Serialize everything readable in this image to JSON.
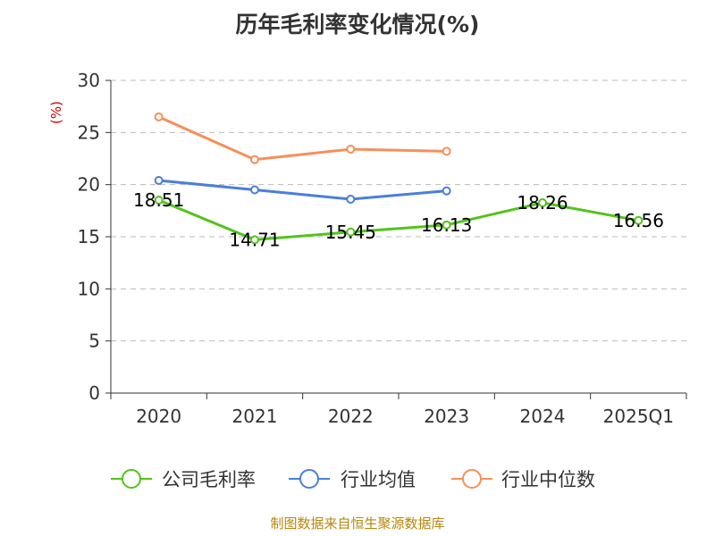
{
  "chart_data": {
    "type": "line",
    "title": "历年毛利率变化情况(%)",
    "ylabel": "(%)",
    "categories": [
      "2020",
      "2021",
      "2022",
      "2023",
      "2024",
      "2025Q1"
    ],
    "ylim": [
      0,
      30
    ],
    "yticks": [
      0,
      5,
      10,
      15,
      20,
      25,
      30
    ],
    "grid": true,
    "legend_position": "bottom",
    "series": [
      {
        "name": "公司毛利率",
        "color": "#52c41a",
        "values": [
          18.51,
          14.71,
          15.45,
          16.13,
          18.26,
          16.56
        ],
        "labels": [
          "18.51",
          "14.71",
          "15.45",
          "16.13",
          "18.26",
          "16.56"
        ]
      },
      {
        "name": "行业均值",
        "color": "#4a7fd9",
        "values": [
          20.4,
          19.5,
          18.6,
          19.4,
          null,
          null
        ]
      },
      {
        "name": "行业中位数",
        "color": "#f5905a",
        "values": [
          26.5,
          22.4,
          23.4,
          23.2,
          null,
          null
        ]
      }
    ]
  },
  "footer": "制图数据来自恒生聚源数据库"
}
